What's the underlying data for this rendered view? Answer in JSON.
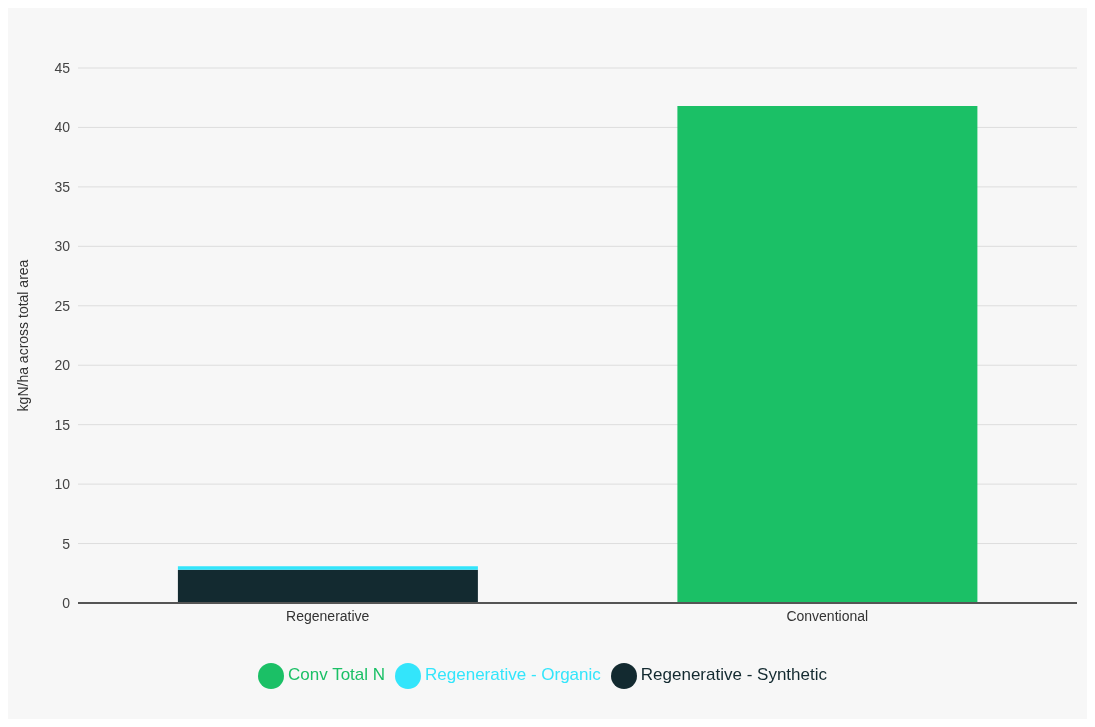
{
  "chart_data": {
    "type": "bar",
    "stacked": true,
    "ylabel": "kgN/ha across total area",
    "categories": [
      "Regenerative",
      "Conventional"
    ],
    "series": [
      {
        "name": "Regenerative - Synthetic",
        "color": "#132a30",
        "values": [
          2.8,
          null
        ]
      },
      {
        "name": "Regenerative - Organic",
        "color": "#33e5fb",
        "values": [
          0.3,
          null
        ]
      },
      {
        "name": "Conv Total N",
        "color": "#1bc066",
        "values": [
          null,
          41.8
        ]
      }
    ],
    "ylim": [
      0,
      45
    ],
    "yticks": [
      0,
      5,
      10,
      15,
      20,
      25,
      30,
      35,
      40,
      45
    ],
    "grid": "y",
    "legend": "bottom"
  }
}
